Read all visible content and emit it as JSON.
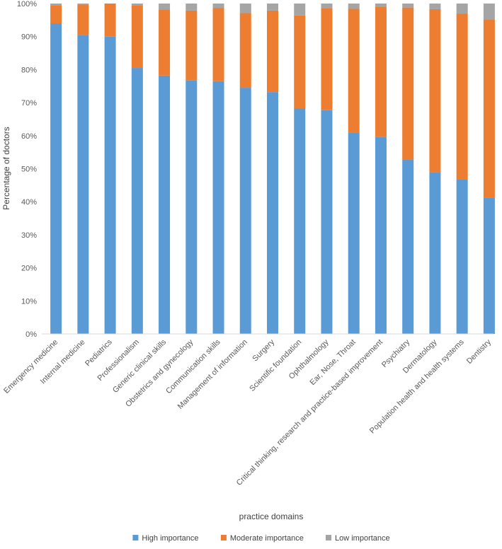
{
  "chart_data": {
    "type": "bar",
    "stacked": true,
    "orientation": "vertical",
    "xlabel": "practice domains",
    "ylabel": "Percentage of doctors",
    "ylim": [
      0,
      100
    ],
    "yticks": [
      "0%",
      "10%",
      "20%",
      "30%",
      "40%",
      "50%",
      "60%",
      "70%",
      "80%",
      "90%",
      "100%"
    ],
    "grid": false,
    "legend_position": "bottom",
    "categories": [
      "Emergency medicine",
      "Internal medicine",
      "Pediatrics",
      "Professionalism",
      "Generic clinical skills",
      "Obstetrics and gynecology",
      "Communication skills",
      "Management of information",
      "Surgery",
      "Scientific foundation",
      "Ophthalmology",
      "Ear, Nose, Throat",
      "Critical thinking, research and practice-based improvement",
      "Psychiatry",
      "Dermatology",
      "Population health and health systems",
      "Dentistry"
    ],
    "series": [
      {
        "name": "High importance",
        "color": "#5B9BD5",
        "values": [
          94,
          90.5,
          90,
          80.5,
          78.2,
          76.7,
          76.5,
          74.5,
          73.2,
          68.3,
          67.7,
          61,
          59.6,
          52.8,
          49,
          46.8,
          41.3
        ]
      },
      {
        "name": "Moderate importance",
        "color": "#ED7D31",
        "values": [
          5.5,
          9.2,
          10,
          19,
          20,
          21.2,
          22.2,
          22.6,
          24.7,
          28.1,
          30.8,
          37.4,
          39.5,
          46,
          49.3,
          50.1,
          53.9
        ]
      },
      {
        "name": "Low importance",
        "color": "#A5A5A5",
        "values": [
          0.5,
          0.3,
          0,
          0.5,
          1.8,
          2.1,
          1.3,
          2.9,
          2.1,
          3.6,
          1.5,
          1.6,
          0.9,
          1.2,
          1.7,
          3.1,
          4.8
        ]
      }
    ]
  }
}
